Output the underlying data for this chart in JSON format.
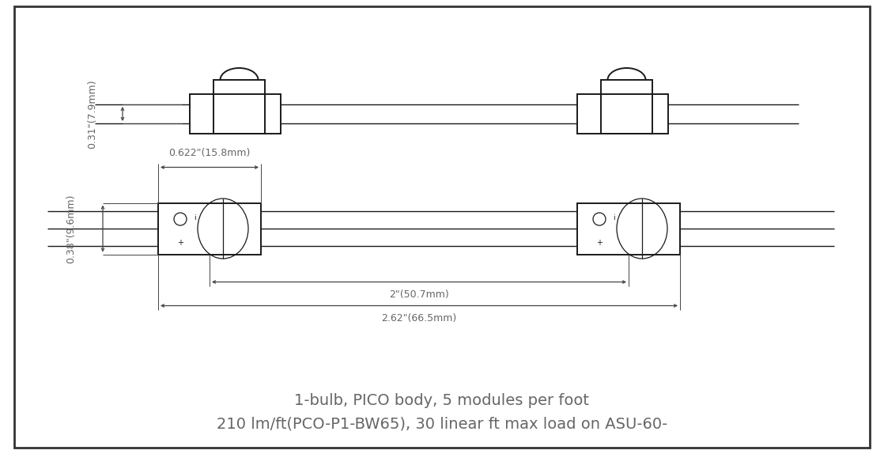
{
  "bg_color": "#ffffff",
  "line_color": "#1a1a1a",
  "dim_color": "#444444",
  "text_color": "#666666",
  "lw_main": 1.4,
  "lw_thin": 0.9,
  "lw_wire": 1.0,
  "title_line1": "1-bulb, PICO body, 5 modules per foot",
  "title_line2": "210 lm/ft(PCO-P1-BW65), 30 linear ft max load on ASU-60-",
  "dim_031": "0.31\"(7.9mm)",
  "dim_038": "0.38\"(9.6mm)",
  "dim_622": "0.622\"(15.8mm)",
  "dim_2": "2\"(50.7mm)",
  "dim_262": "2.62\"(66.5mm)"
}
